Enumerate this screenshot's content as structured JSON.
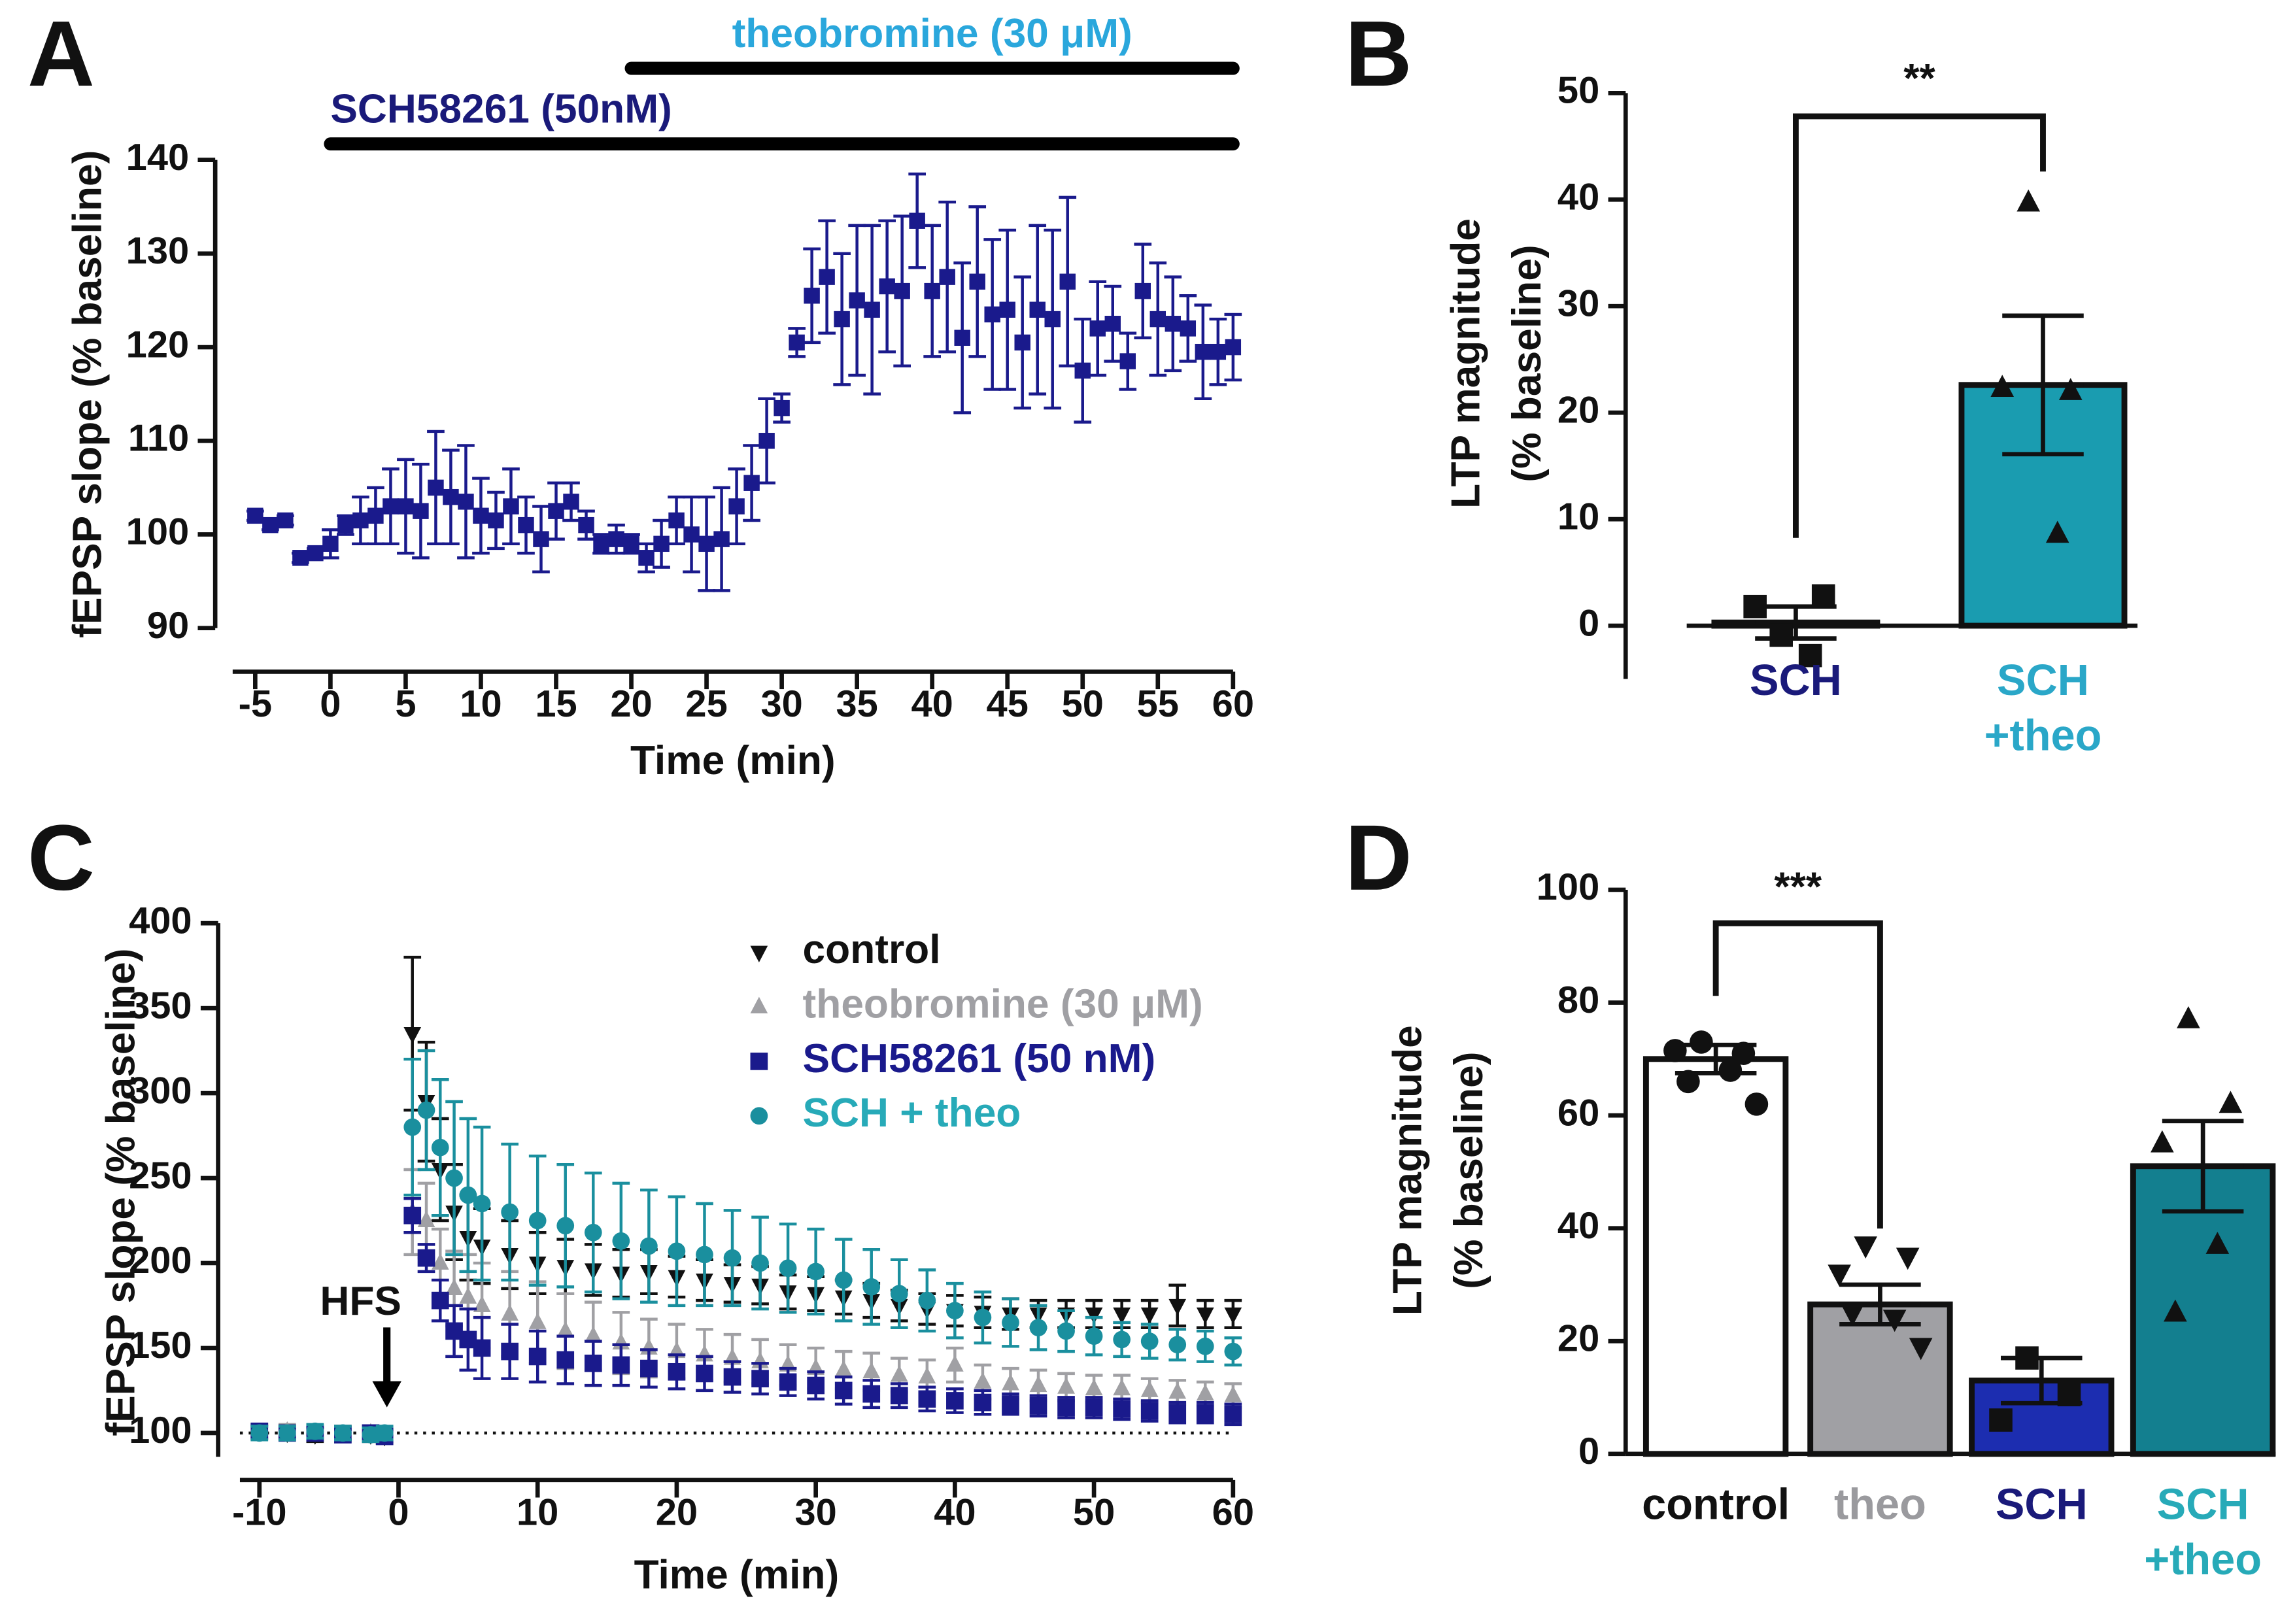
{
  "chart_data": [
    {
      "type": "scatter",
      "panel": "A",
      "ylabel": "fEPSP slope (% baseline)",
      "xlabel": "Time (min)",
      "xlim": [
        -6.5,
        60
      ],
      "xticks": [
        -5,
        0,
        5,
        10,
        15,
        20,
        25,
        30,
        35,
        40,
        45,
        50,
        55,
        60
      ],
      "ylim": [
        90,
        140
      ],
      "yticks": [
        90,
        100,
        110,
        120,
        130,
        140
      ],
      "treatments": [
        {
          "label": "SCH58261 (50nM)",
          "start": 0,
          "end": 60,
          "color": "#1a1a7a"
        },
        {
          "label": "theobromine (30 μM)",
          "start": 20,
          "end": 60,
          "color": "#2aa7dc"
        }
      ],
      "series": [
        {
          "color": "#1a1a8c",
          "marker": "square",
          "x": [
            -5,
            -4,
            -3,
            -2,
            -1,
            0,
            1,
            2,
            3,
            4,
            5,
            6,
            7,
            8,
            9,
            10,
            11,
            12,
            13,
            14,
            15,
            16,
            17,
            18,
            19,
            20,
            21,
            22,
            23,
            24,
            25,
            26,
            27,
            28,
            29,
            30,
            31,
            32,
            33,
            34,
            35,
            36,
            37,
            38,
            39,
            40,
            41,
            42,
            43,
            44,
            45,
            46,
            47,
            48,
            49,
            50,
            51,
            52,
            53,
            54,
            55,
            56,
            57,
            58,
            59,
            60
          ],
          "values": [
            102,
            101,
            101.5,
            97.5,
            98,
            99,
            101,
            101.5,
            102,
            103,
            103,
            102.5,
            105,
            104,
            103.5,
            102,
            101.5,
            103,
            101,
            99.5,
            102.5,
            103.5,
            101,
            99,
            99.5,
            99,
            97.5,
            99,
            101.5,
            100,
            99,
            99.5,
            103,
            105.5,
            110,
            113.5,
            120.5,
            125.5,
            127.5,
            123,
            125,
            124,
            126.5,
            126,
            133.5,
            126,
            127.5,
            121,
            127,
            123.5,
            124,
            120.5,
            124,
            123,
            127,
            117.5,
            122,
            122.5,
            118.5,
            126,
            123,
            122.5,
            122,
            119.5,
            119.5,
            120
          ],
          "errors": [
            0.5,
            0.5,
            0.5,
            0.5,
            0.5,
            1.5,
            1,
            2.5,
            3,
            4,
            5,
            5,
            6,
            5,
            6,
            4,
            3,
            4,
            3,
            3.5,
            3,
            2,
            1.5,
            1,
            1.5,
            1,
            1.5,
            2.5,
            2.5,
            4,
            5,
            5.5,
            4,
            4,
            4.5,
            1.5,
            1.5,
            5,
            6,
            7,
            8,
            9,
            7,
            8,
            5,
            7,
            8,
            8,
            8,
            8,
            8.5,
            7,
            9,
            9.5,
            9,
            5.5,
            5,
            4,
            3,
            5,
            6,
            5,
            3.5,
            5,
            3.5,
            3.5
          ]
        }
      ]
    },
    {
      "type": "bar",
      "panel": "B",
      "ylabel": [
        "LTP magnitude",
        "(% baseline)"
      ],
      "ylim": [
        -5,
        50
      ],
      "yticks": [
        0,
        10,
        20,
        30,
        40,
        50
      ],
      "categories": [
        [
          "SCH"
        ],
        [
          "SCH",
          "+theo"
        ]
      ],
      "label_colors": [
        "#1a1a7a",
        "#2aa7c8"
      ],
      "values": [
        0.3,
        22.6
      ],
      "errors": [
        1.5,
        6.5
      ],
      "colors": [
        "#ffffff",
        "#1a9cb0"
      ],
      "markers": [
        "square",
        "triangle-up"
      ],
      "points": [
        [
          -0.9,
          2.8,
          1.8,
          -2.8
        ],
        [
          39.7,
          22.0,
          22.3,
          8.6
        ]
      ],
      "significance": {
        "label": "**",
        "from": 0,
        "to": 1
      }
    },
    {
      "type": "scatter",
      "panel": "C",
      "ylabel": "fEPSP slope (% baseline)",
      "xlabel": "Time (min)",
      "xlim": [
        -11.4,
        60
      ],
      "xticks": [
        -10,
        0,
        10,
        20,
        30,
        40,
        50,
        60
      ],
      "ylim": [
        86,
        400
      ],
      "yticks": [
        100,
        150,
        200,
        250,
        300,
        350,
        400
      ],
      "reference_line": 100,
      "annotations": [
        {
          "text": "HFS",
          "x": 0
        }
      ],
      "series": [
        {
          "name": "control",
          "color": "#111111",
          "marker": "triangle-down",
          "x": [
            -10,
            -8,
            -6,
            -4,
            -2,
            -1,
            1,
            2,
            3,
            4,
            5,
            6,
            8,
            10,
            12,
            14,
            16,
            18,
            20,
            22,
            24,
            26,
            28,
            30,
            32,
            34,
            36,
            38,
            40,
            42,
            44,
            46,
            48,
            50,
            52,
            54,
            56,
            58,
            60
          ],
          "values": [
            101,
            100,
            99,
            100,
            99,
            98,
            335,
            295,
            255,
            230,
            215,
            210,
            205,
            200,
            198,
            196,
            194,
            195,
            192,
            190,
            188,
            187,
            183,
            182,
            180,
            178,
            175,
            173,
            172,
            171,
            170,
            170,
            170,
            170,
            170,
            170,
            175,
            170,
            170
          ],
          "errors": [
            4,
            4,
            4,
            4,
            4,
            4,
            45,
            35,
            30,
            28,
            25,
            22,
            20,
            18,
            16,
            15,
            14,
            13,
            12,
            12,
            11,
            11,
            10,
            10,
            10,
            10,
            9,
            9,
            9,
            9,
            9,
            8,
            8,
            8,
            8,
            8,
            12,
            8,
            8
          ]
        },
        {
          "name": "theobromine (30 μM)",
          "color": "#a0a0a4",
          "marker": "triangle-up",
          "x": [
            -10,
            -8,
            -6,
            -4,
            -2,
            -1,
            1,
            2,
            3,
            4,
            5,
            6,
            8,
            10,
            12,
            14,
            16,
            18,
            20,
            22,
            24,
            26,
            28,
            30,
            32,
            34,
            36,
            38,
            40,
            42,
            44,
            46,
            48,
            50,
            52,
            54,
            56,
            58,
            60
          ],
          "values": [
            100,
            101,
            100,
            99,
            100,
            99,
            230,
            225,
            200,
            185,
            180,
            175,
            170,
            165,
            160,
            157,
            153,
            150,
            148,
            146,
            144,
            142,
            140,
            138,
            137,
            136,
            134,
            133,
            140,
            130,
            129,
            128,
            127,
            126,
            126,
            125,
            124,
            123,
            122
          ],
          "errors": [
            4,
            4,
            4,
            4,
            4,
            4,
            25,
            22,
            20,
            22,
            25,
            25,
            25,
            24,
            22,
            20,
            18,
            17,
            16,
            15,
            14,
            13,
            12,
            12,
            11,
            11,
            10,
            10,
            10,
            10,
            9,
            9,
            8,
            8,
            8,
            7,
            7,
            7,
            7
          ]
        },
        {
          "name": "SCH58261 (50 nM)",
          "color": "#1a1a8c",
          "marker": "square",
          "x": [
            -10,
            -8,
            -6,
            -4,
            -2,
            -1,
            1,
            2,
            3,
            4,
            5,
            6,
            8,
            10,
            12,
            14,
            16,
            18,
            20,
            22,
            24,
            26,
            28,
            30,
            32,
            34,
            36,
            38,
            40,
            42,
            44,
            46,
            48,
            50,
            52,
            54,
            56,
            58,
            60
          ],
          "values": [
            101,
            100,
            100,
            99,
            100,
            98,
            228,
            203,
            178,
            160,
            155,
            150,
            148,
            145,
            143,
            141,
            140,
            138,
            136,
            135,
            133,
            132,
            130,
            128,
            125,
            123,
            122,
            120,
            119,
            118,
            117,
            116,
            115,
            115,
            114,
            113,
            112,
            112,
            111
          ],
          "errors": [
            3,
            3,
            3,
            3,
            3,
            3,
            10,
            8,
            12,
            15,
            18,
            18,
            16,
            15,
            14,
            13,
            12,
            11,
            10,
            10,
            9,
            9,
            8,
            8,
            8,
            8,
            7,
            7,
            7,
            7,
            6,
            6,
            6,
            6,
            6,
            6,
            6,
            6,
            6
          ]
        },
        {
          "name": "SCH + theo",
          "color": "#1a8f9e",
          "marker": "circle",
          "x": [
            -10,
            -8,
            -6,
            -4,
            -2,
            -1,
            1,
            2,
            3,
            4,
            5,
            6,
            8,
            10,
            12,
            14,
            16,
            18,
            20,
            22,
            24,
            26,
            28,
            30,
            32,
            34,
            36,
            38,
            40,
            42,
            44,
            46,
            48,
            50,
            52,
            54,
            56,
            58,
            60
          ],
          "values": [
            100,
            100,
            101,
            100,
            99,
            100,
            280,
            290,
            268,
            250,
            240,
            235,
            230,
            225,
            222,
            218,
            213,
            210,
            207,
            205,
            203,
            200,
            197,
            195,
            190,
            186,
            182,
            178,
            172,
            168,
            165,
            162,
            160,
            157,
            155,
            154,
            152,
            151,
            148
          ],
          "errors": [
            4,
            4,
            4,
            4,
            4,
            4,
            40,
            35,
            40,
            45,
            45,
            45,
            40,
            38,
            36,
            35,
            34,
            33,
            32,
            30,
            28,
            27,
            26,
            25,
            24,
            22,
            20,
            18,
            16,
            15,
            14,
            13,
            12,
            11,
            10,
            10,
            9,
            9,
            8
          ]
        }
      ]
    },
    {
      "type": "bar",
      "panel": "D",
      "ylabel": [
        "LTP magnitude",
        "(% baseline)"
      ],
      "ylim": [
        0,
        100
      ],
      "yticks": [
        0,
        20,
        40,
        60,
        80,
        100
      ],
      "categories": [
        [
          "control"
        ],
        [
          "theo"
        ],
        [
          "SCH"
        ],
        [
          "SCH",
          "+theo"
        ]
      ],
      "label_colors": [
        "#111111",
        "#9a9a9e",
        "#1a1a7a",
        "#27aab8"
      ],
      "values": [
        70,
        26.5,
        13,
        51
      ],
      "errors": [
        2.5,
        3.5,
        4,
        8
      ],
      "colors": [
        "#ffffff",
        "#a0a0a4",
        "#1c2db0",
        "#137f8f"
      ],
      "markers": [
        "circle",
        "triangle-down",
        "square",
        "triangle-up"
      ],
      "points": [
        [
          73,
          71,
          71.5,
          68,
          66,
          62
        ],
        [
          37,
          35,
          32,
          24,
          25,
          19
        ],
        [
          17,
          10.5,
          6
        ],
        [
          77,
          62,
          55,
          37,
          25
        ]
      ],
      "significance": {
        "label": "***",
        "from": 0,
        "to": 1
      }
    }
  ]
}
